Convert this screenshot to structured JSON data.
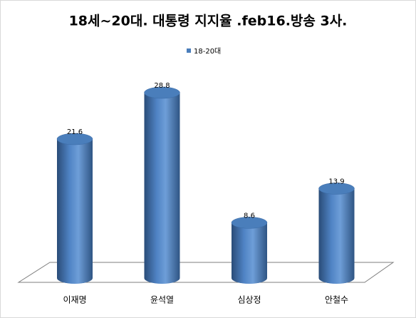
{
  "chart_data": {
    "type": "bar",
    "title": "18세~20대. 대통령 지지율 .feb16.방송 3사.",
    "categories": [
      "이재명",
      "윤석열",
      "심상정",
      "안철수"
    ],
    "series": [
      {
        "name": "18-20대",
        "color": "#4a7ebb",
        "values": [
          21.6,
          28.8,
          8.6,
          13.9
        ]
      }
    ]
  }
}
